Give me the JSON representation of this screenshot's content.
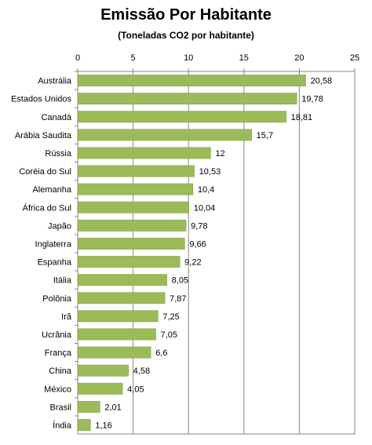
{
  "chart_data": {
    "type": "bar",
    "orientation": "horizontal",
    "title": "Emissão Por Habitante",
    "subtitle": "(Toneladas CO2 por habitante)",
    "xlim": [
      0,
      25
    ],
    "xticks": [
      0,
      5,
      10,
      15,
      20,
      25
    ],
    "grid": true,
    "bar_color": "#9bbb59",
    "categories": [
      "Austrália",
      "Estados Unidos",
      "Canadá",
      "Arábia Saudita",
      "Rússia",
      "Coréia do Sul",
      "Alemanha",
      "África do Sul",
      "Japão",
      "Inglaterra",
      "Espanha",
      "Itália",
      "Polônia",
      "Irã",
      "Ucrânia",
      "França",
      "China",
      "México",
      "Brasil",
      "Índia"
    ],
    "values": [
      20.58,
      19.78,
      18.81,
      15.7,
      12,
      10.53,
      10.4,
      10.04,
      9.78,
      9.66,
      9.22,
      8.05,
      7.87,
      7.25,
      7.05,
      6.6,
      4.58,
      4.05,
      2.01,
      1.16
    ],
    "value_labels": [
      "20,58",
      "19,78",
      "18,81",
      "15,7",
      "12",
      "10,53",
      "10,4",
      "10,04",
      "9,78",
      "9,66",
      "9,22",
      "8,05",
      "7,87",
      "7,25",
      "7,05",
      "6,6",
      "4,58",
      "4,05",
      "2,01",
      "1,16"
    ]
  }
}
